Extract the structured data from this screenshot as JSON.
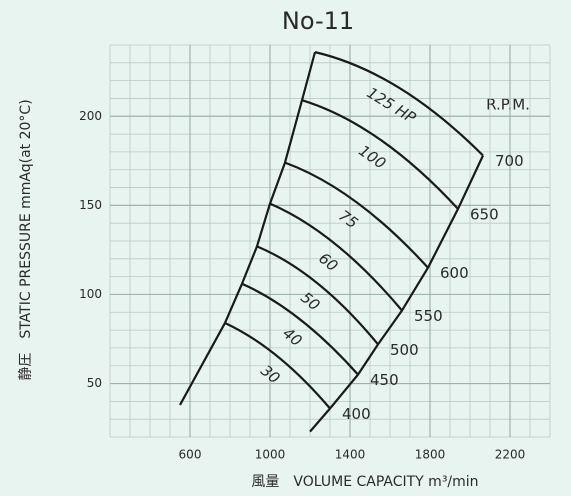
{
  "chart_data": {
    "type": "line",
    "title": "No-11",
    "x_label": "風量　VOLUME CAPACITY m³/min",
    "y_label": "静圧　STATIC PRESSURE mmAq(at 20°C)",
    "rpm_header": "R.P.M.",
    "xlim": [
      200,
      2400
    ],
    "ylim": [
      20,
      240
    ],
    "xticks": [
      600,
      1000,
      1400,
      1800,
      2200
    ],
    "yticks": [
      50,
      100,
      150,
      200
    ],
    "xgrid": [
      200,
      300,
      400,
      500,
      600,
      700,
      800,
      900,
      1000,
      1100,
      1200,
      1300,
      1400,
      1500,
      1600,
      1700,
      1800,
      1900,
      2000,
      2100,
      2200,
      2300,
      2400
    ],
    "ygrid": [
      20,
      30,
      40,
      50,
      60,
      70,
      80,
      90,
      100,
      110,
      120,
      130,
      140,
      150,
      160,
      170,
      180,
      190,
      200,
      210,
      220,
      230,
      240
    ],
    "grid": true,
    "color": "#1a1a1a",
    "series": [
      {
        "name": "125 HP",
        "rpm": "700",
        "x": [
          1225,
          1645,
          2065
        ],
        "values": [
          236,
          216,
          178
        ]
      },
      {
        "name": "100",
        "rpm": "650",
        "x": [
          1160,
          1550,
          1940
        ],
        "values": [
          209,
          187,
          148
        ]
      },
      {
        "name": "75",
        "rpm": "600",
        "x": [
          1075,
          1430,
          1790
        ],
        "values": [
          174,
          152,
          115
        ]
      },
      {
        "name": "60",
        "rpm": "550",
        "x": [
          1000,
          1330,
          1660
        ],
        "values": [
          151,
          128,
          91
        ]
      },
      {
        "name": "50",
        "rpm": "500",
        "x": [
          935,
          1240,
          1540
        ],
        "values": [
          127,
          106,
          72
        ]
      },
      {
        "name": "40",
        "rpm": "450",
        "x": [
          860,
          1150,
          1440
        ],
        "values": [
          106,
          86,
          55
        ]
      },
      {
        "name": "30",
        "rpm": "400",
        "x": [
          775,
          1040,
          1300
        ],
        "values": [
          84,
          65,
          36
        ]
      }
    ],
    "boundaries": [
      {
        "x": [
          550,
          775,
          860,
          935,
          1000,
          1075,
          1160,
          1225
        ],
        "values": [
          38,
          84,
          106,
          127,
          151,
          174,
          209,
          236
        ]
      },
      {
        "x": [
          1200,
          1300,
          1440,
          1540,
          1660,
          1790,
          1940,
          2065
        ],
        "values": [
          23,
          36,
          55,
          72,
          91,
          115,
          148,
          178
        ]
      }
    ]
  }
}
